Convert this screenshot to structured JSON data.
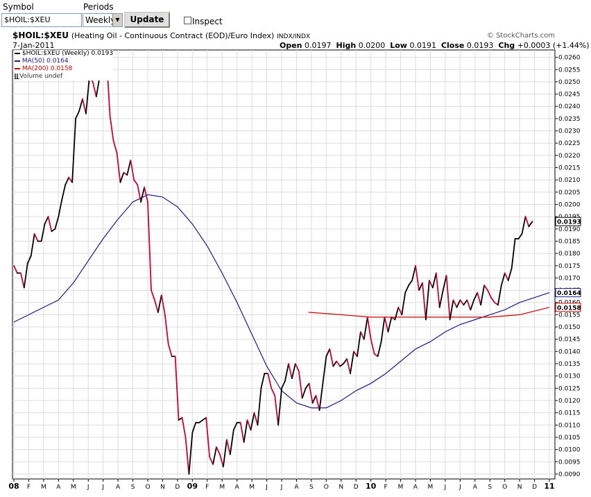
{
  "form": {
    "symbol_label": "Symbol",
    "symbol_value": "$HOIL:$XEU",
    "periods_label": "Periods",
    "periods_value": "Weekly",
    "update_label": "Update",
    "inspect_label": "Inspect"
  },
  "header": {
    "title_bold": "$HOIL:$XEU",
    "title_desc": "(Heating Oil - Continuous Contract (EOD)/Euro Index)",
    "title_exchange": "INDX/INDX",
    "copyright": "© StockCharts.com",
    "date": "7-Jan-2011",
    "open_label": "Open",
    "open_value": "0.0197",
    "high_label": "High",
    "high_value": "0.0200",
    "low_label": "Low",
    "low_value": "0.0191",
    "close_label": "Close",
    "close_value": "0.0193",
    "chg_label": "Chg",
    "chg_value": "+0.0003 (+1.44%)"
  },
  "legend": [
    {
      "text": "$HOIL:$XEU (Weekly) 0.0193",
      "color": "#000000"
    },
    {
      "text": "MA(50) 0.0164",
      "color": "#1a1a8c"
    },
    {
      "text": "MA(200) 0.0158",
      "color": "#cc0000"
    },
    {
      "text": "Volume undef",
      "color": "#333333"
    }
  ],
  "chart_data": {
    "type": "line",
    "ylim": [
      0.0088,
      0.0263
    ],
    "yscale": "linear",
    "grid": true,
    "y_ticks": [
      "0.0260",
      "0.0255",
      "0.0250",
      "0.0245",
      "0.0240",
      "0.0235",
      "0.0230",
      "0.0225",
      "0.0220",
      "0.0215",
      "0.0210",
      "0.0205",
      "0.0200",
      "0.0195",
      "0.0190",
      "0.0185",
      "0.0180",
      "0.0175",
      "0.0170",
      "0.0165",
      "0.0160",
      "0.0155",
      "0.0150",
      "0.0145",
      "0.0140",
      "0.0135",
      "0.0130",
      "0.0125",
      "0.0120",
      "0.0115",
      "0.0110",
      "0.0105",
      "0.0100",
      "0.0095",
      "0.0090"
    ],
    "x_ticks": [
      "08",
      "F",
      "M",
      "A",
      "M",
      "J",
      "J",
      "A",
      "S",
      "O",
      "N",
      "D",
      "09",
      "F",
      "M",
      "A",
      "M",
      "J",
      "J",
      "A",
      "S",
      "O",
      "N",
      "D",
      "10",
      "F",
      "M",
      "A",
      "M",
      "J",
      "J",
      "A",
      "S",
      "O",
      "N",
      "D",
      "11"
    ],
    "bold_x_ticks": [
      "08",
      "09",
      "10",
      "11"
    ],
    "last_value_labels": [
      {
        "text": "0.0193",
        "value": 0.0193,
        "color": "#000000"
      },
      {
        "text": "0.0164",
        "value": 0.0164,
        "color": "#1a1a8c"
      },
      {
        "text": "0.0158",
        "value": 0.0158,
        "color": "#cc0000"
      }
    ],
    "up_color": "#000000",
    "down_color": "#cc0033",
    "series": [
      {
        "name": "$HOIL:$XEU (Weekly)",
        "x_start": 0.0,
        "x_step": 0.2308,
        "values": [
          0.0175,
          0.0172,
          0.0172,
          0.0166,
          0.0176,
          0.0179,
          0.0188,
          0.0185,
          0.0185,
          0.0192,
          0.0195,
          0.0189,
          0.019,
          0.0195,
          0.0202,
          0.0208,
          0.0211,
          0.0209,
          0.0235,
          0.0238,
          0.0243,
          0.0237,
          0.0252,
          0.025,
          0.0244,
          0.0252,
          0.0262,
          0.026,
          0.0236,
          0.0226,
          0.0221,
          0.0209,
          0.0213,
          0.0212,
          0.0218,
          0.021,
          0.0208,
          0.0201,
          0.0207,
          0.0201,
          0.0165,
          0.0161,
          0.0156,
          0.0163,
          0.0155,
          0.0143,
          0.0138,
          0.0138,
          0.0112,
          0.0113,
          0.0105,
          0.009,
          0.0107,
          0.0111,
          0.0111,
          0.0112,
          0.0113,
          0.0097,
          0.0094,
          0.0101,
          0.0098,
          0.0093,
          0.0104,
          0.0098,
          0.0108,
          0.0111,
          0.0111,
          0.0103,
          0.0112,
          0.0108,
          0.0115,
          0.011,
          0.0125,
          0.0131,
          0.0131,
          0.0125,
          0.0122,
          0.011,
          0.0125,
          0.0128,
          0.0135,
          0.0129,
          0.0135,
          0.0132,
          0.0121,
          0.0125,
          0.0127,
          0.0119,
          0.0122,
          0.0116,
          0.0127,
          0.0138,
          0.0141,
          0.0134,
          0.0136,
          0.0134,
          0.0135,
          0.0137,
          0.0131,
          0.014,
          0.0138,
          0.0148,
          0.0145,
          0.0154,
          0.0145,
          0.0139,
          0.0138,
          0.0144,
          0.0154,
          0.0148,
          0.0154,
          0.0153,
          0.0158,
          0.0155,
          0.0164,
          0.0167,
          0.0169,
          0.0175,
          0.0165,
          0.0168,
          0.0153,
          0.0169,
          0.0166,
          0.0172,
          0.0158,
          0.0165,
          0.0171,
          0.0153,
          0.0161,
          0.0158,
          0.0161,
          0.0159,
          0.0161,
          0.0157,
          0.0161,
          0.0164,
          0.0159,
          0.0167,
          0.0165,
          0.0162,
          0.016,
          0.0159,
          0.0167,
          0.0172,
          0.0169,
          0.0174,
          0.0186,
          0.0186,
          0.0188,
          0.0195,
          0.0191,
          0.0193
        ]
      },
      {
        "name": "MA(50)",
        "points": [
          [
            0,
            0.0152
          ],
          [
            3,
            0.0161
          ],
          [
            4,
            0.0168
          ],
          [
            5,
            0.0177
          ],
          [
            6,
            0.0186
          ],
          [
            7,
            0.0194
          ],
          [
            8,
            0.0201
          ],
          [
            9,
            0.0204
          ],
          [
            10,
            0.0203
          ],
          [
            11,
            0.0199
          ],
          [
            12,
            0.0192
          ],
          [
            13,
            0.0183
          ],
          [
            14,
            0.0172
          ],
          [
            15,
            0.016
          ],
          [
            16,
            0.0147
          ],
          [
            17,
            0.0134
          ],
          [
            18,
            0.0124
          ],
          [
            19,
            0.0119
          ],
          [
            20,
            0.0117
          ],
          [
            21,
            0.0117
          ],
          [
            22,
            0.012
          ],
          [
            23,
            0.0124
          ],
          [
            24,
            0.0127
          ],
          [
            25,
            0.0131
          ],
          [
            26,
            0.0136
          ],
          [
            27,
            0.0141
          ],
          [
            28,
            0.0144
          ],
          [
            29,
            0.0148
          ],
          [
            30,
            0.0151
          ],
          [
            31,
            0.0153
          ],
          [
            32,
            0.0155
          ],
          [
            33,
            0.0157
          ],
          [
            34,
            0.016
          ],
          [
            35,
            0.0162
          ],
          [
            36,
            0.0164
          ]
        ]
      },
      {
        "name": "MA(200)",
        "points": [
          [
            19.8,
            0.0156
          ],
          [
            22,
            0.0155
          ],
          [
            24,
            0.0154
          ],
          [
            26,
            0.0154
          ],
          [
            28,
            0.0154
          ],
          [
            30,
            0.0154
          ],
          [
            32,
            0.0154
          ],
          [
            34,
            0.0155
          ],
          [
            36,
            0.0158
          ]
        ]
      }
    ]
  }
}
